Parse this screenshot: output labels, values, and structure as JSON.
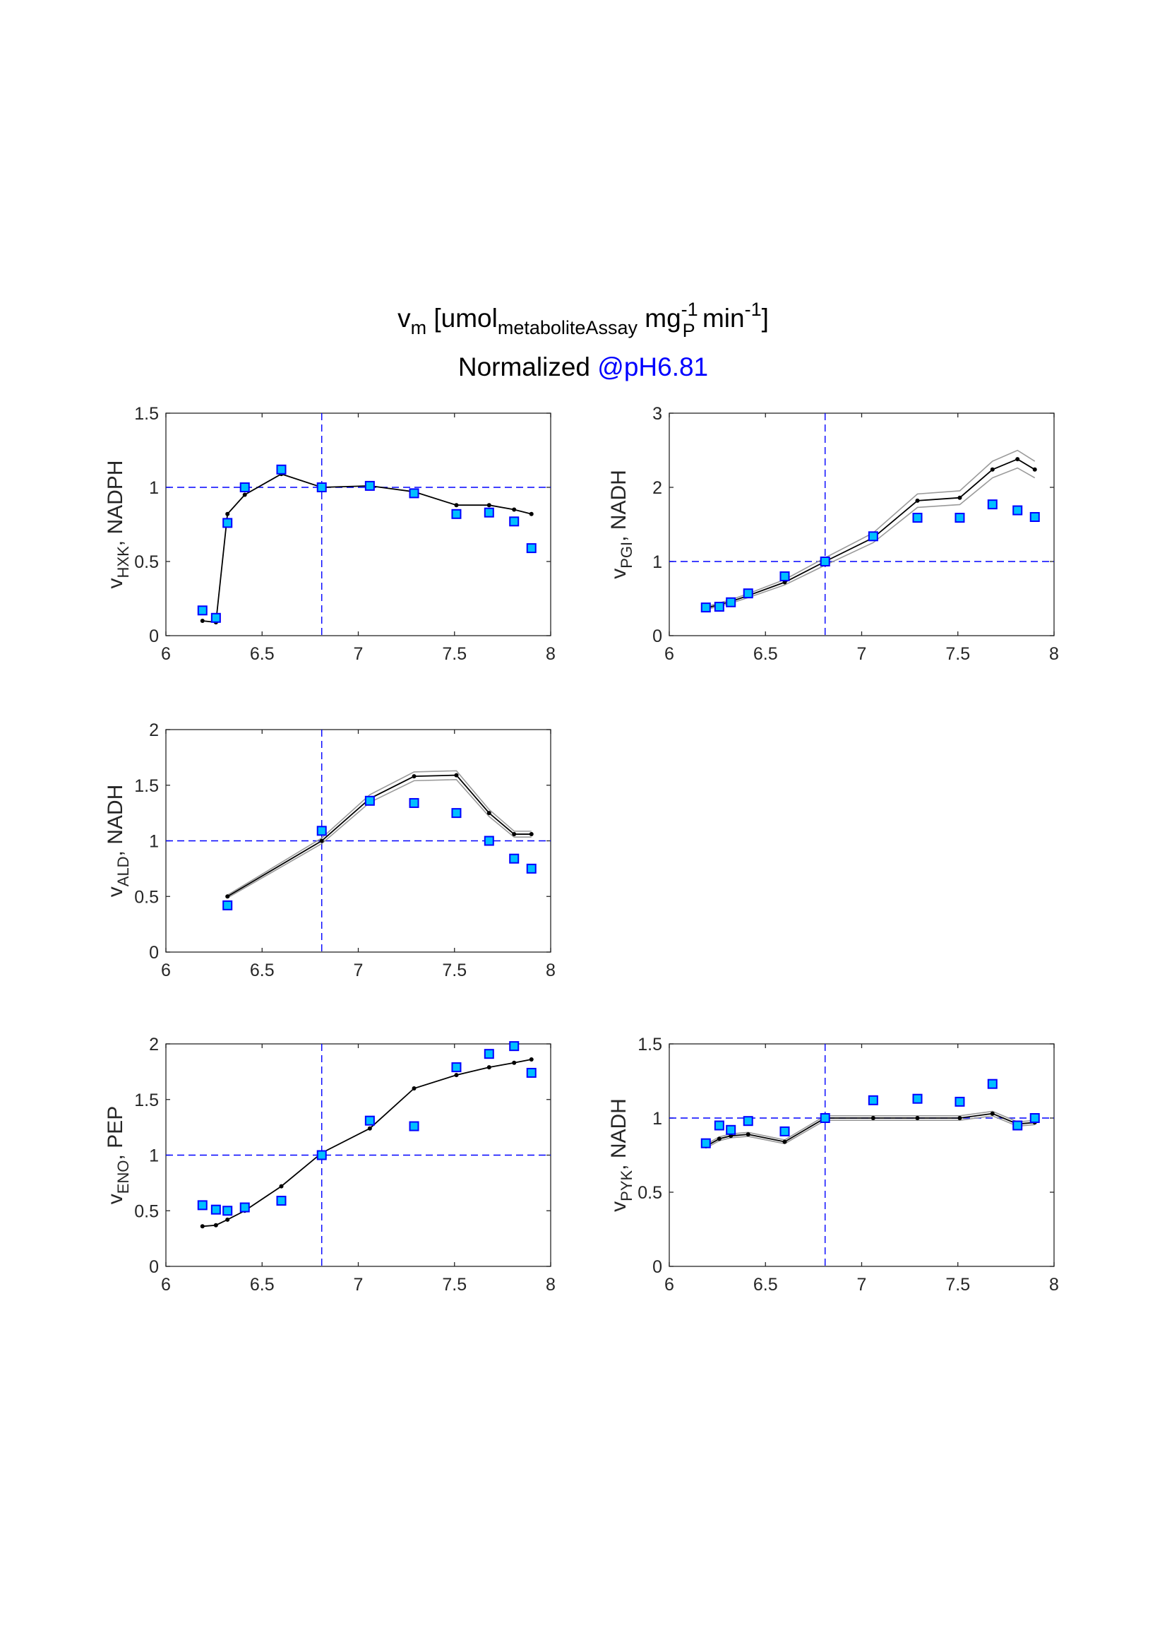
{
  "figure": {
    "title_line1": {
      "v": "v",
      "sub_m": "m",
      "bracket_open": " [umol",
      "sub_metabolite": "metaboliteAssay",
      "mg": " mg",
      "sup_mg": "-1",
      "sub_P": "P",
      "min": " min",
      "sup_min": "-1",
      "bracket_close": "]"
    },
    "title_line2": {
      "normalized": "Normalized ",
      "ph_label": "@pH6.81",
      "ph_color": "#0000ff"
    }
  },
  "colors": {
    "model_line": "#000000",
    "model_band": "#9a9a9a",
    "marker_fill": "#00bfff",
    "marker_edge": "#0000ff",
    "ref_line": "#0000ff",
    "axes": "#262626"
  },
  "chart_data": [
    {
      "type": "line",
      "ylabel": {
        "v": "v",
        "sub": "HXK",
        "rest": ", NADPH"
      },
      "xlim": [
        6,
        8
      ],
      "ylim": [
        0,
        1.5
      ],
      "xticks": [
        "6",
        "6.5",
        "7",
        "7.5",
        "8"
      ],
      "yticks": [
        "0",
        "0.5",
        "1",
        "1.5"
      ],
      "ref_x": 6.81,
      "ref_y": 1,
      "series": [
        {
          "type": "line",
          "x": [
            6.19,
            6.26,
            6.32,
            6.41,
            6.6,
            6.81,
            7.06,
            7.29,
            7.51,
            7.68,
            7.81,
            7.9
          ],
          "y": [
            0.1,
            0.09,
            0.82,
            0.95,
            1.09,
            1.0,
            1.01,
            0.97,
            0.88,
            0.88,
            0.85,
            0.82
          ],
          "band": 0.0
        },
        {
          "type": "scatter",
          "x": [
            6.19,
            6.26,
            6.32,
            6.41,
            6.6,
            6.81,
            7.06,
            7.29,
            7.51,
            7.68,
            7.81,
            7.9
          ],
          "y": [
            0.17,
            0.12,
            0.76,
            1.0,
            1.12,
            1.0,
            1.01,
            0.96,
            0.82,
            0.83,
            0.77,
            0.59
          ]
        }
      ]
    },
    {
      "type": "line",
      "ylabel": {
        "v": "v",
        "sub": "PGI",
        "rest": ", NADH"
      },
      "xlim": [
        6,
        8
      ],
      "ylim": [
        0,
        3
      ],
      "xticks": [
        "6",
        "6.5",
        "7",
        "7.5",
        "8"
      ],
      "yticks": [
        "0",
        "1",
        "2",
        "3"
      ],
      "ref_x": 6.81,
      "ref_y": 1,
      "series": [
        {
          "type": "line",
          "x": [
            6.19,
            6.26,
            6.32,
            6.41,
            6.6,
            6.81,
            7.06,
            7.29,
            7.51,
            7.68,
            7.81,
            7.9
          ],
          "y": [
            0.37,
            0.42,
            0.46,
            0.54,
            0.72,
            1.0,
            1.32,
            1.82,
            1.86,
            2.24,
            2.38,
            2.24
          ],
          "band": 0.05
        },
        {
          "type": "scatter",
          "x": [
            6.19,
            6.26,
            6.32,
            6.41,
            6.6,
            6.81,
            7.06,
            7.29,
            7.51,
            7.68,
            7.81,
            7.9
          ],
          "y": [
            0.38,
            0.39,
            0.45,
            0.57,
            0.8,
            1.0,
            1.34,
            1.59,
            1.59,
            1.77,
            1.69,
            1.6
          ]
        }
      ]
    },
    {
      "type": "line",
      "ylabel": {
        "v": "v",
        "sub": "ALD",
        "rest": ", NADH"
      },
      "xlim": [
        6,
        8
      ],
      "ylim": [
        0,
        2
      ],
      "xticks": [
        "6",
        "6.5",
        "7",
        "7.5",
        "8"
      ],
      "yticks": [
        "0",
        "0.5",
        "1",
        "1.5",
        "2"
      ],
      "ref_x": 6.81,
      "ref_y": 1,
      "series": [
        {
          "type": "line",
          "x": [
            6.32,
            6.81,
            7.06,
            7.29,
            7.51,
            7.68,
            7.81,
            7.9
          ],
          "y": [
            0.5,
            1.0,
            1.38,
            1.58,
            1.59,
            1.25,
            1.06,
            1.06
          ],
          "band": 0.025
        },
        {
          "type": "scatter",
          "x": [
            6.32,
            6.81,
            7.06,
            7.29,
            7.51,
            7.68,
            7.81,
            7.9
          ],
          "y": [
            0.42,
            1.09,
            1.36,
            1.34,
            1.25,
            1.0,
            0.84,
            0.75
          ]
        }
      ]
    },
    {
      "type": "line",
      "ylabel": {
        "v": "v",
        "sub": "ENO",
        "rest": ", PEP"
      },
      "xlim": [
        6,
        8
      ],
      "ylim": [
        0,
        2
      ],
      "xticks": [
        "6",
        "6.5",
        "7",
        "7.5",
        "8"
      ],
      "yticks": [
        "0",
        "0.5",
        "1",
        "1.5",
        "2"
      ],
      "ref_x": 6.81,
      "ref_y": 1,
      "series": [
        {
          "type": "line",
          "x": [
            6.19,
            6.26,
            6.32,
            6.41,
            6.6,
            6.81,
            7.06,
            7.29,
            7.51,
            7.68,
            7.81,
            7.9
          ],
          "y": [
            0.36,
            0.37,
            0.42,
            0.5,
            0.72,
            1.02,
            1.24,
            1.6,
            1.72,
            1.79,
            1.83,
            1.86
          ],
          "band": 0.0
        },
        {
          "type": "scatter",
          "x": [
            6.19,
            6.26,
            6.32,
            6.41,
            6.6,
            6.81,
            7.06,
            7.29,
            7.51,
            7.68,
            7.81,
            7.9
          ],
          "y": [
            0.55,
            0.51,
            0.5,
            0.53,
            0.59,
            1.0,
            1.31,
            1.26,
            1.79,
            1.91,
            1.98,
            1.74
          ]
        }
      ]
    },
    {
      "type": "line",
      "ylabel": {
        "v": "v",
        "sub": "PYK",
        "rest": ", NADH"
      },
      "xlim": [
        6,
        8
      ],
      "ylim": [
        0,
        1.5
      ],
      "xticks": [
        "6",
        "6.5",
        "7",
        "7.5",
        "8"
      ],
      "yticks": [
        "0",
        "0.5",
        "1",
        "1.5"
      ],
      "ref_x": 6.81,
      "ref_y": 1,
      "series": [
        {
          "type": "line",
          "x": [
            6.19,
            6.26,
            6.32,
            6.41,
            6.6,
            6.81,
            7.06,
            7.29,
            7.51,
            7.68,
            7.81,
            7.9
          ],
          "y": [
            0.81,
            0.86,
            0.88,
            0.89,
            0.84,
            1.0,
            1.0,
            1.0,
            1.0,
            1.03,
            0.96,
            0.97
          ],
          "band": 0.015
        },
        {
          "type": "scatter",
          "x": [
            6.19,
            6.26,
            6.32,
            6.41,
            6.6,
            6.81,
            7.06,
            7.29,
            7.51,
            7.68,
            7.81,
            7.9
          ],
          "y": [
            0.83,
            0.95,
            0.92,
            0.98,
            0.91,
            1.0,
            1.12,
            1.13,
            1.11,
            1.23,
            0.95,
            1.0
          ]
        }
      ]
    }
  ]
}
